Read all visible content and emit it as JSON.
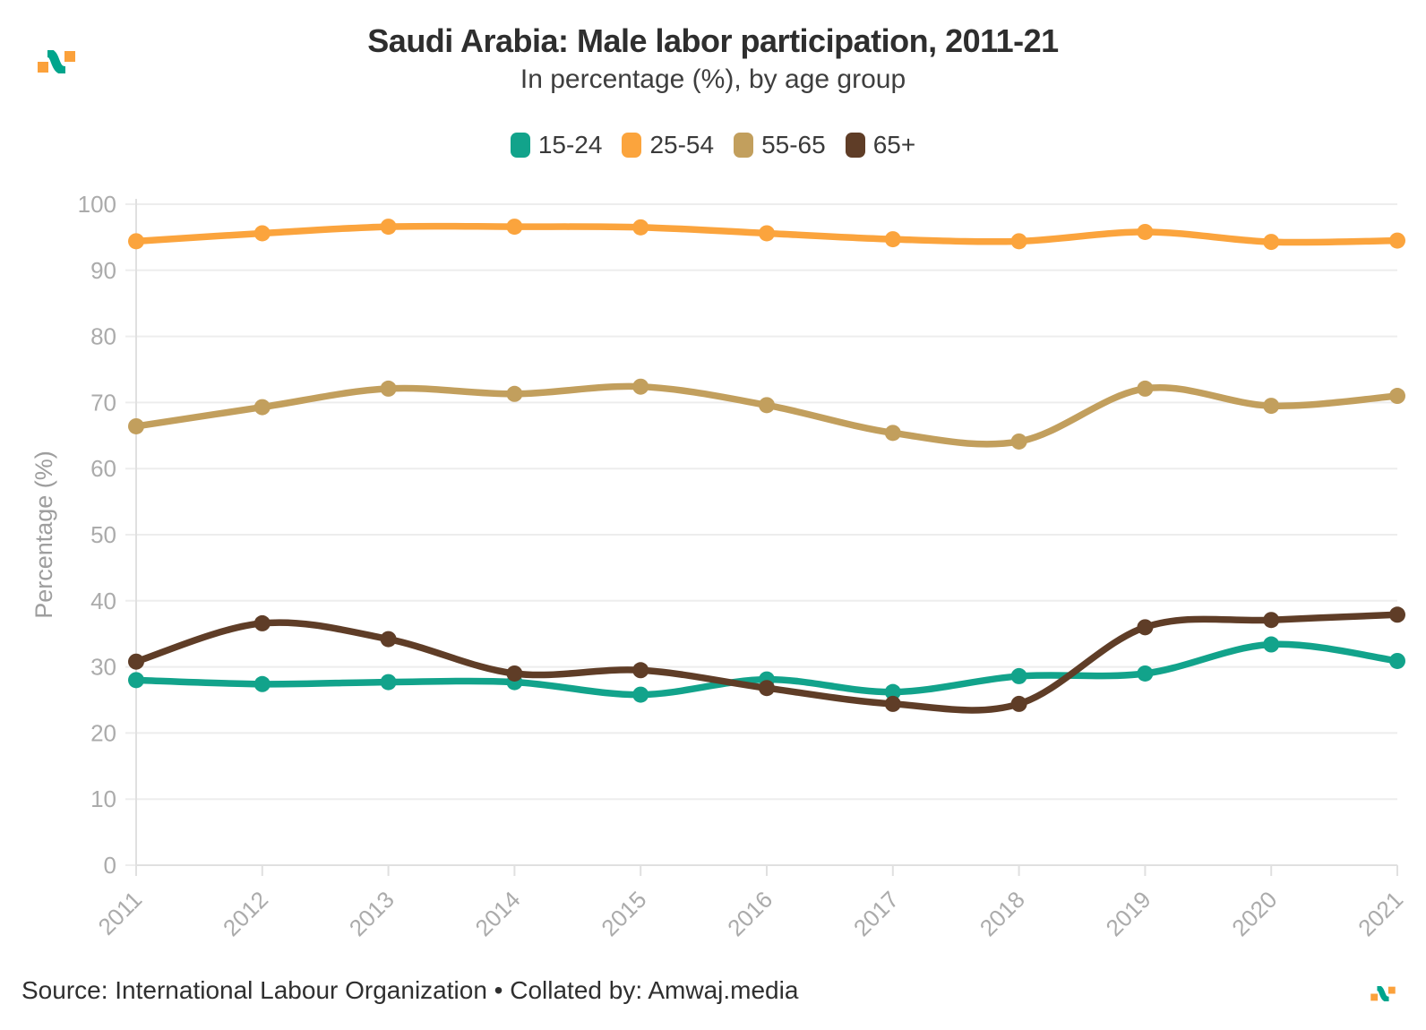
{
  "header": {
    "title": "Saudi Arabia: Male labor participation, 2011-21",
    "subtitle": "In percentage (%), by age group"
  },
  "footer": {
    "source": "Source: International Labour Organization • Collated by: Amwaj.media"
  },
  "logo": {
    "label": "Amwaj.media logo",
    "orange": "#FBA13B",
    "teal": "#00A58C"
  },
  "chart_data": {
    "type": "line",
    "title": "Saudi Arabia: Male labor participation, 2011-21",
    "subtitle": "In percentage (%), by age group",
    "xlabel": "",
    "ylabel": "Percentage (%)",
    "ylim": [
      0,
      100
    ],
    "yticks": [
      0,
      10,
      20,
      30,
      40,
      50,
      60,
      70,
      80,
      90,
      100
    ],
    "x": [
      2011,
      2012,
      2013,
      2014,
      2015,
      2016,
      2017,
      2018,
      2019,
      2020,
      2021
    ],
    "grid": true,
    "smooth": true,
    "legend_position": "top",
    "series": [
      {
        "name": "15-24",
        "color": "#12A38B",
        "values": [
          28.0,
          27.4,
          27.7,
          27.7,
          25.8,
          28.1,
          26.2,
          28.6,
          29.0,
          33.4,
          30.9
        ]
      },
      {
        "name": "25-54",
        "color": "#FBA43D",
        "values": [
          94.4,
          95.6,
          96.6,
          96.6,
          96.5,
          95.6,
          94.7,
          94.4,
          95.8,
          94.3,
          94.5
        ]
      },
      {
        "name": "55-65",
        "color": "#C29F5D",
        "values": [
          66.4,
          69.3,
          72.1,
          71.3,
          72.4,
          69.6,
          65.4,
          64.1,
          72.1,
          69.5,
          71.0
        ]
      },
      {
        "name": "65+",
        "color": "#5F3D27",
        "values": [
          30.8,
          36.6,
          34.2,
          29.0,
          29.5,
          26.8,
          24.4,
          24.4,
          36.0,
          37.1,
          37.9
        ]
      }
    ],
    "axis_style": {
      "label_color": "#ABABAB",
      "axis_title_color": "#9E9E9E",
      "grid_color": "#EDEDED",
      "axis_line_color": "#E0E0E0"
    }
  }
}
